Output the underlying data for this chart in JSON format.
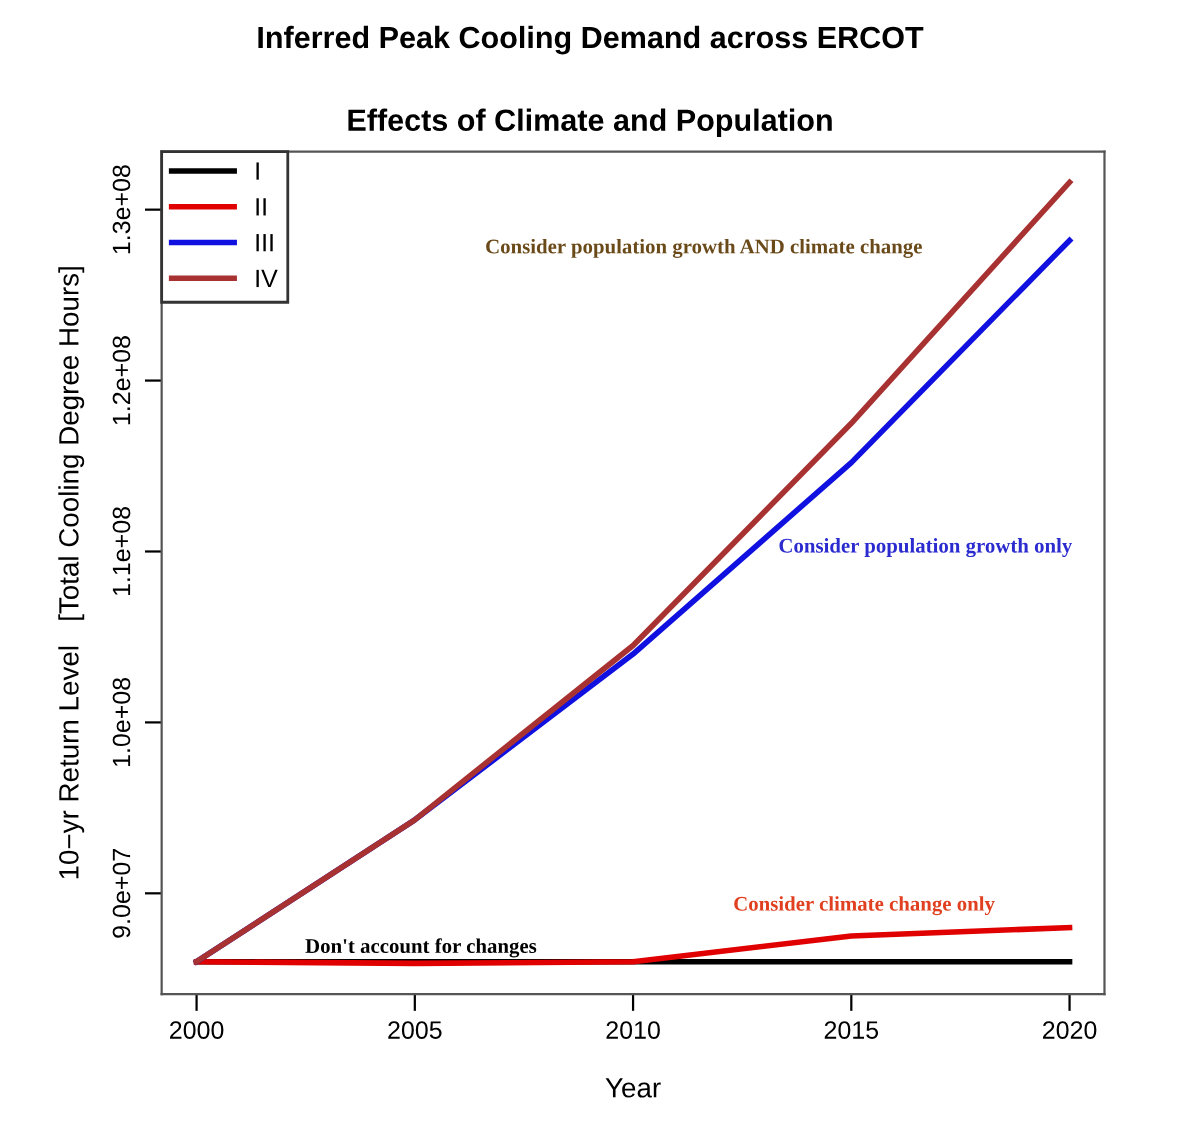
{
  "chart_data": {
    "type": "line",
    "title": "Inferred Peak Cooling Demand across ERCOT",
    "subtitle": "Effects of Climate and Population",
    "xlabel": "Year",
    "ylabel": "10−yr Return Level   [Total Cooling Degree Hours]",
    "x": [
      2000,
      2005,
      2010,
      2015,
      2020
    ],
    "series": [
      {
        "name": "I",
        "color": "#000000",
        "values": [
          86000000,
          86000000,
          86000000,
          86000000,
          86000000
        ]
      },
      {
        "name": "II",
        "color": "#e00000",
        "values": [
          86000000,
          85900000,
          86000000,
          87500000,
          88000000
        ]
      },
      {
        "name": "III",
        "color": "#1010e0",
        "values": [
          86000000,
          94300000,
          104000000,
          115200000,
          128200000
        ]
      },
      {
        "name": "IV",
        "color": "#a83232",
        "values": [
          86000000,
          94300000,
          104500000,
          117500000,
          131600000
        ]
      }
    ],
    "xlim": [
      1999.2,
      2020.8
    ],
    "ylim": [
      84100000,
      133400000
    ],
    "xticks": [
      2000,
      2005,
      2010,
      2015,
      2020
    ],
    "yticks": [
      {
        "value": 90000000,
        "label": "9.0e+07"
      },
      {
        "value": 100000000,
        "label": "1.0e+08"
      },
      {
        "value": 110000000,
        "label": "1.1e+08"
      },
      {
        "value": 120000000,
        "label": "1.2e+08"
      },
      {
        "value": 130000000,
        "label": "1.3e+08"
      }
    ],
    "annotations": [
      "Consider population growth AND climate change",
      "Consider population growth only",
      "Consider climate change only",
      "Don't account for changes"
    ],
    "legend": "top left",
    "grid": false,
    "marker": "none",
    "line_style": "solid"
  }
}
